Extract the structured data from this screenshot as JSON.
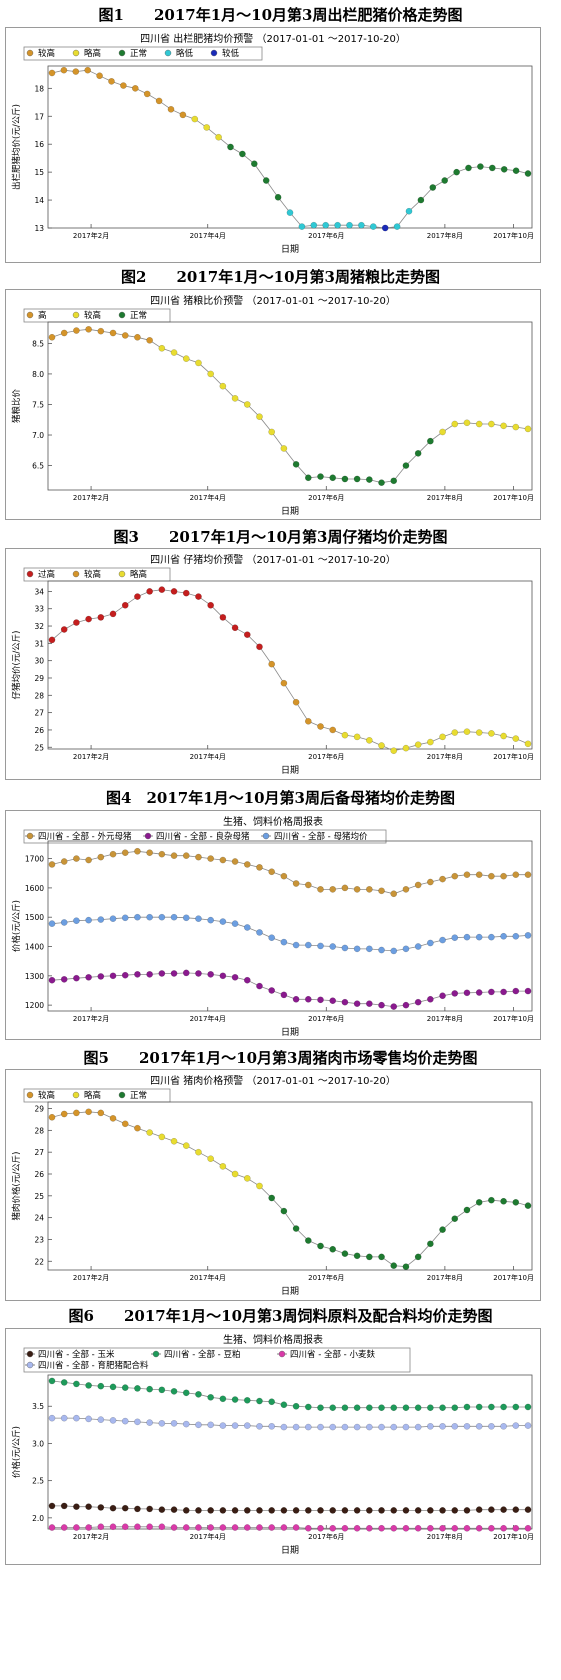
{
  "figures": [
    {
      "caption": "图1　　2017年1月～10月第3周出栏肥猪价格走势图",
      "chart_data": {
        "type": "scatter",
        "title": "四川省 出栏肥猪均价预警 （2017-01-01 ～2017-10-20）",
        "xlabel": "日期",
        "ylabel": "出栏肥猪均价(元/公斤)",
        "ylim": [
          13,
          18.8
        ],
        "yticks": [
          13,
          14,
          15,
          16,
          17,
          18
        ],
        "xticks": [
          "2017年2月",
          "2017年4月",
          "2017年6月",
          "2017年8月",
          "2017年10月"
        ],
        "legend_position": "top-left",
        "categories": [
          {
            "name": "较高",
            "color": "#d4942a"
          },
          {
            "name": "略高",
            "color": "#e8dc30"
          },
          {
            "name": "正常",
            "color": "#1e7a30"
          },
          {
            "name": "略低",
            "color": "#30c8d4"
          },
          {
            "name": "较低",
            "color": "#1a2ab8"
          }
        ],
        "values": [
          18.55,
          18.65,
          18.6,
          18.65,
          18.45,
          18.25,
          18.1,
          18.0,
          17.8,
          17.55,
          17.25,
          17.05,
          16.9,
          16.6,
          16.25,
          15.9,
          15.65,
          15.3,
          14.7,
          14.1,
          13.55,
          13.05,
          13.1,
          13.1,
          13.1,
          13.1,
          13.1,
          13.05,
          13.0,
          13.05,
          13.6,
          14.0,
          14.45,
          14.7,
          15.0,
          15.15,
          15.2,
          15.15,
          15.1,
          15.05,
          14.95
        ],
        "levels": [
          "较高",
          "较高",
          "较高",
          "较高",
          "较高",
          "较高",
          "较高",
          "较高",
          "较高",
          "较高",
          "较高",
          "较高",
          "略高",
          "略高",
          "略高",
          "正常",
          "正常",
          "正常",
          "正常",
          "正常",
          "略低",
          "略低",
          "略低",
          "略低",
          "略低",
          "略低",
          "略低",
          "略低",
          "较低",
          "略低",
          "略低",
          "正常",
          "正常",
          "正常",
          "正常",
          "正常",
          "正常",
          "正常",
          "正常",
          "正常",
          "正常"
        ]
      }
    },
    {
      "caption": "图2　　2017年1月～10月第3周猪粮比走势图",
      "chart_data": {
        "type": "scatter",
        "title": "四川省 猪粮比价预警 （2017-01-01 ～2017-10-20）",
        "xlabel": "日期",
        "ylabel": "猪粮比价",
        "ylim": [
          6.1,
          8.85
        ],
        "yticks": [
          6.5,
          7.0,
          7.5,
          8.0,
          8.5
        ],
        "xticks": [
          "2017年2月",
          "2017年4月",
          "2017年6月",
          "2017年8月",
          "2017年10月"
        ],
        "legend_position": "top-left",
        "categories": [
          {
            "name": "高",
            "color": "#d4942a"
          },
          {
            "name": "较高",
            "color": "#e8dc30"
          },
          {
            "name": "正常",
            "color": "#1e7a30"
          }
        ],
        "values": [
          8.6,
          8.67,
          8.71,
          8.73,
          8.7,
          8.67,
          8.63,
          8.6,
          8.55,
          8.42,
          8.35,
          8.25,
          8.18,
          8.0,
          7.8,
          7.6,
          7.5,
          7.3,
          7.05,
          6.78,
          6.52,
          6.3,
          6.32,
          6.3,
          6.28,
          6.28,
          6.27,
          6.22,
          6.25,
          6.5,
          6.7,
          6.9,
          7.05,
          7.18,
          7.2,
          7.18,
          7.18,
          7.15,
          7.13,
          7.1
        ],
        "levels": [
          "高",
          "高",
          "高",
          "高",
          "高",
          "高",
          "高",
          "高",
          "高",
          "较高",
          "较高",
          "较高",
          "较高",
          "较高",
          "较高",
          "较高",
          "较高",
          "较高",
          "较高",
          "较高",
          "正常",
          "正常",
          "正常",
          "正常",
          "正常",
          "正常",
          "正常",
          "正常",
          "正常",
          "正常",
          "正常",
          "正常",
          "较高",
          "较高",
          "较高",
          "较高",
          "较高",
          "较高",
          "较高",
          "较高"
        ]
      }
    },
    {
      "caption": "图3　　2017年1月～10月第3周仔猪均价走势图",
      "chart_data": {
        "type": "scatter",
        "title": "四川省 仔猪均价预警 （2017-01-01 ～2017-10-20）",
        "xlabel": "日期",
        "ylabel": "仔猪均价(元/公斤)",
        "ylim": [
          24.9,
          34.6
        ],
        "yticks": [
          25,
          26,
          27,
          28,
          29,
          30,
          31,
          32,
          33,
          34
        ],
        "xticks": [
          "2017年2月",
          "2017年4月",
          "2017年6月",
          "2017年8月",
          "2017年10月"
        ],
        "legend_position": "top-left",
        "categories": [
          {
            "name": "过高",
            "color": "#c41e1e"
          },
          {
            "name": "较高",
            "color": "#d4942a"
          },
          {
            "name": "略高",
            "color": "#e8dc30"
          }
        ],
        "values": [
          31.2,
          31.8,
          32.2,
          32.4,
          32.5,
          32.7,
          33.2,
          33.7,
          34.0,
          34.1,
          34.0,
          33.9,
          33.7,
          33.2,
          32.5,
          31.9,
          31.5,
          30.8,
          29.8,
          28.7,
          27.6,
          26.5,
          26.2,
          26.0,
          25.7,
          25.6,
          25.4,
          25.1,
          24.8,
          24.95,
          25.15,
          25.3,
          25.6,
          25.85,
          25.9,
          25.85,
          25.8,
          25.65,
          25.5,
          25.2
        ],
        "levels": [
          "过高",
          "过高",
          "过高",
          "过高",
          "过高",
          "过高",
          "过高",
          "过高",
          "过高",
          "过高",
          "过高",
          "过高",
          "过高",
          "过高",
          "过高",
          "过高",
          "过高",
          "过高",
          "较高",
          "较高",
          "较高",
          "较高",
          "较高",
          "较高",
          "略高",
          "略高",
          "略高",
          "略高",
          "略高",
          "略高",
          "略高",
          "略高",
          "略高",
          "略高",
          "略高",
          "略高",
          "略高",
          "略高",
          "略高",
          "略高"
        ]
      }
    },
    {
      "caption": "图4　2017年1月～10月第3周后备母猪均价走势图",
      "chart_data": {
        "type": "line",
        "title": "生猪、饲料价格周报表",
        "xlabel": "日期",
        "ylabel": "价格(元/公斤)",
        "ylim": [
          1180,
          1760
        ],
        "yticks": [
          1200,
          1300,
          1400,
          1500,
          1600,
          1700
        ],
        "xticks": [
          "2017年2月",
          "2017年4月",
          "2017年6月",
          "2017年8月",
          "2017年10月"
        ],
        "legend_position": "top-left",
        "series": [
          {
            "name": "四川省 - 全部 - 外元母猪",
            "color": "#c89438",
            "values": [
              1680,
              1690,
              1700,
              1695,
              1705,
              1715,
              1720,
              1725,
              1720,
              1715,
              1710,
              1710,
              1705,
              1700,
              1695,
              1690,
              1680,
              1670,
              1655,
              1640,
              1615,
              1610,
              1595,
              1595,
              1600,
              1595,
              1595,
              1590,
              1580,
              1595,
              1610,
              1620,
              1630,
              1640,
              1645,
              1645,
              1640,
              1640,
              1645,
              1645
            ]
          },
          {
            "name": "四川省 - 全部 - 良杂母猪",
            "color": "#8a1a8e",
            "values": [
              1285,
              1288,
              1292,
              1295,
              1298,
              1300,
              1302,
              1305,
              1305,
              1308,
              1308,
              1310,
              1308,
              1305,
              1300,
              1295,
              1285,
              1265,
              1250,
              1235,
              1220,
              1220,
              1218,
              1215,
              1210,
              1205,
              1205,
              1200,
              1195,
              1200,
              1210,
              1220,
              1232,
              1240,
              1242,
              1243,
              1245,
              1245,
              1248,
              1248
            ]
          },
          {
            "name": "四川省 - 全部 - 母猪均价",
            "color": "#6c9ee0",
            "values": [
              1478,
              1482,
              1488,
              1490,
              1492,
              1495,
              1498,
              1500,
              1500,
              1500,
              1500,
              1498,
              1495,
              1490,
              1485,
              1478,
              1465,
              1448,
              1430,
              1415,
              1405,
              1405,
              1402,
              1400,
              1395,
              1392,
              1392,
              1388,
              1385,
              1392,
              1400,
              1412,
              1422,
              1430,
              1432,
              1432,
              1432,
              1435,
              1435,
              1438
            ]
          }
        ]
      }
    },
    {
      "caption": "图5　　2017年1月～10月第3周猪肉市场零售均价走势图",
      "chart_data": {
        "type": "scatter",
        "title": "四川省 猪肉价格预警 （2017-01-01 ～2017-10-20）",
        "xlabel": "日期",
        "ylabel": "猪肉价格(元/公斤)",
        "ylim": [
          21.6,
          29.3
        ],
        "yticks": [
          22,
          23,
          24,
          25,
          26,
          27,
          28,
          29
        ],
        "xticks": [
          "2017年2月",
          "2017年4月",
          "2017年6月",
          "2017年8月",
          "2017年10月"
        ],
        "legend_position": "top-left",
        "categories": [
          {
            "name": "较高",
            "color": "#d4942a"
          },
          {
            "name": "略高",
            "color": "#e8dc30"
          },
          {
            "name": "正常",
            "color": "#1e7a30"
          }
        ],
        "values": [
          28.6,
          28.75,
          28.8,
          28.85,
          28.8,
          28.55,
          28.3,
          28.1,
          27.9,
          27.7,
          27.5,
          27.3,
          27.0,
          26.7,
          26.35,
          26.0,
          25.8,
          25.45,
          24.9,
          24.3,
          23.5,
          22.95,
          22.7,
          22.55,
          22.35,
          22.25,
          22.2,
          22.2,
          21.8,
          21.75,
          22.2,
          22.8,
          23.45,
          23.95,
          24.35,
          24.7,
          24.8,
          24.75,
          24.7,
          24.55
        ],
        "levels": [
          "较高",
          "较高",
          "较高",
          "较高",
          "较高",
          "较高",
          "较高",
          "较高",
          "略高",
          "略高",
          "略高",
          "略高",
          "略高",
          "略高",
          "略高",
          "略高",
          "略高",
          "略高",
          "正常",
          "正常",
          "正常",
          "正常",
          "正常",
          "正常",
          "正常",
          "正常",
          "正常",
          "正常",
          "正常",
          "正常",
          "正常",
          "正常",
          "正常",
          "正常",
          "正常",
          "正常",
          "正常",
          "正常",
          "正常",
          "正常"
        ]
      }
    },
    {
      "caption": "图6　　2017年1月～10月第3周饲料原料及配合料均价走势图",
      "chart_data": {
        "type": "line",
        "title": "生猪、饲料价格周报表",
        "xlabel": "日期",
        "ylabel": "价格(元/公斤)",
        "ylim": [
          1.85,
          3.92
        ],
        "yticks": [
          2.0,
          2.5,
          3.0,
          3.5
        ],
        "xticks": [
          "2017年2月",
          "2017年4月",
          "2017年6月",
          "2017年8月",
          "2017年10月"
        ],
        "legend_position": "top-left",
        "series": [
          {
            "name": "四川省 - 全部 - 玉米",
            "color": "#3a1e14",
            "values": [
              2.16,
              2.16,
              2.15,
              2.15,
              2.14,
              2.13,
              2.13,
              2.12,
              2.12,
              2.11,
              2.11,
              2.1,
              2.1,
              2.1,
              2.1,
              2.1,
              2.1,
              2.1,
              2.1,
              2.1,
              2.1,
              2.1,
              2.1,
              2.1,
              2.1,
              2.1,
              2.1,
              2.1,
              2.1,
              2.1,
              2.1,
              2.1,
              2.1,
              2.1,
              2.1,
              2.11,
              2.11,
              2.11,
              2.11,
              2.11
            ]
          },
          {
            "name": "四川省 - 全部 - 豆粕",
            "color": "#1e9a5a",
            "values": [
              3.84,
              3.82,
              3.8,
              3.78,
              3.77,
              3.76,
              3.75,
              3.74,
              3.73,
              3.72,
              3.7,
              3.68,
              3.66,
              3.62,
              3.6,
              3.59,
              3.58,
              3.57,
              3.56,
              3.52,
              3.5,
              3.49,
              3.48,
              3.48,
              3.48,
              3.48,
              3.48,
              3.48,
              3.48,
              3.48,
              3.48,
              3.48,
              3.48,
              3.48,
              3.49,
              3.49,
              3.49,
              3.49,
              3.49,
              3.49
            ]
          },
          {
            "name": "四川省 - 全部 - 小麦麸",
            "color": "#d83aa8",
            "values": [
              1.87,
              1.87,
              1.87,
              1.87,
              1.88,
              1.88,
              1.88,
              1.88,
              1.88,
              1.88,
              1.87,
              1.87,
              1.87,
              1.87,
              1.87,
              1.87,
              1.87,
              1.87,
              1.87,
              1.87,
              1.87,
              1.86,
              1.86,
              1.86,
              1.86,
              1.86,
              1.86,
              1.86,
              1.86,
              1.86,
              1.86,
              1.86,
              1.86,
              1.86,
              1.86,
              1.86,
              1.86,
              1.86,
              1.86,
              1.86
            ]
          },
          {
            "name": "四川省 - 全部 - 育肥猪配合料",
            "color": "#a8b8ee",
            "values": [
              3.34,
              3.34,
              3.34,
              3.33,
              3.32,
              3.31,
              3.3,
              3.29,
              3.28,
              3.27,
              3.27,
              3.26,
              3.25,
              3.25,
              3.24,
              3.24,
              3.24,
              3.23,
              3.23,
              3.22,
              3.22,
              3.22,
              3.22,
              3.22,
              3.22,
              3.22,
              3.22,
              3.22,
              3.22,
              3.22,
              3.22,
              3.23,
              3.23,
              3.23,
              3.23,
              3.23,
              3.23,
              3.23,
              3.24,
              3.24
            ]
          }
        ]
      }
    }
  ]
}
